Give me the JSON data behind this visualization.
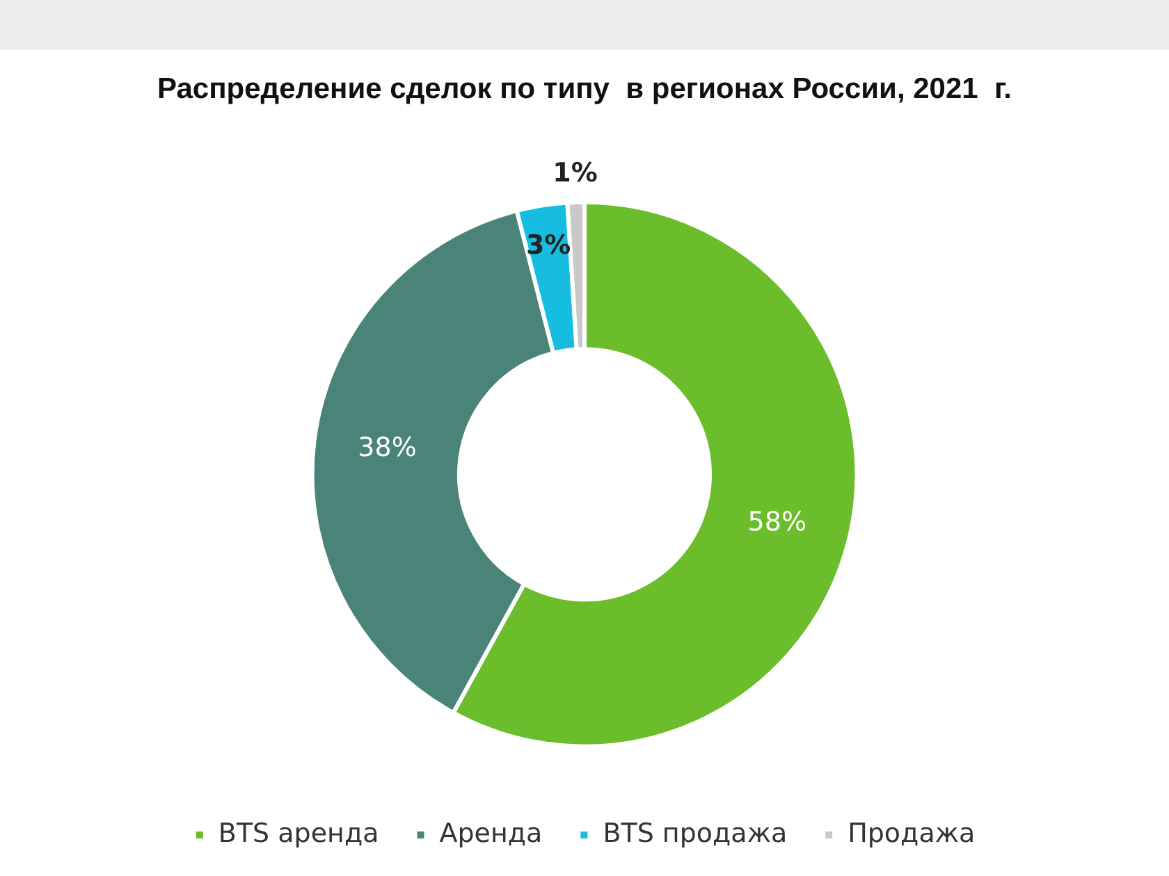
{
  "chart_data": {
    "type": "donut",
    "title": "Распределение сделок по типу  в регионах России, 2021  г.",
    "categories": [
      "BTS аренда",
      "Аренда",
      "BTS продажа",
      "Продажа"
    ],
    "values": [
      58,
      38,
      3,
      1
    ],
    "colors": [
      "#6bbd2b",
      "#4a8479",
      "#16bde0",
      "#c9c9c9"
    ],
    "value_labels": [
      "58%",
      "38%",
      "3%",
      "1%"
    ],
    "legend": "bottom"
  }
}
